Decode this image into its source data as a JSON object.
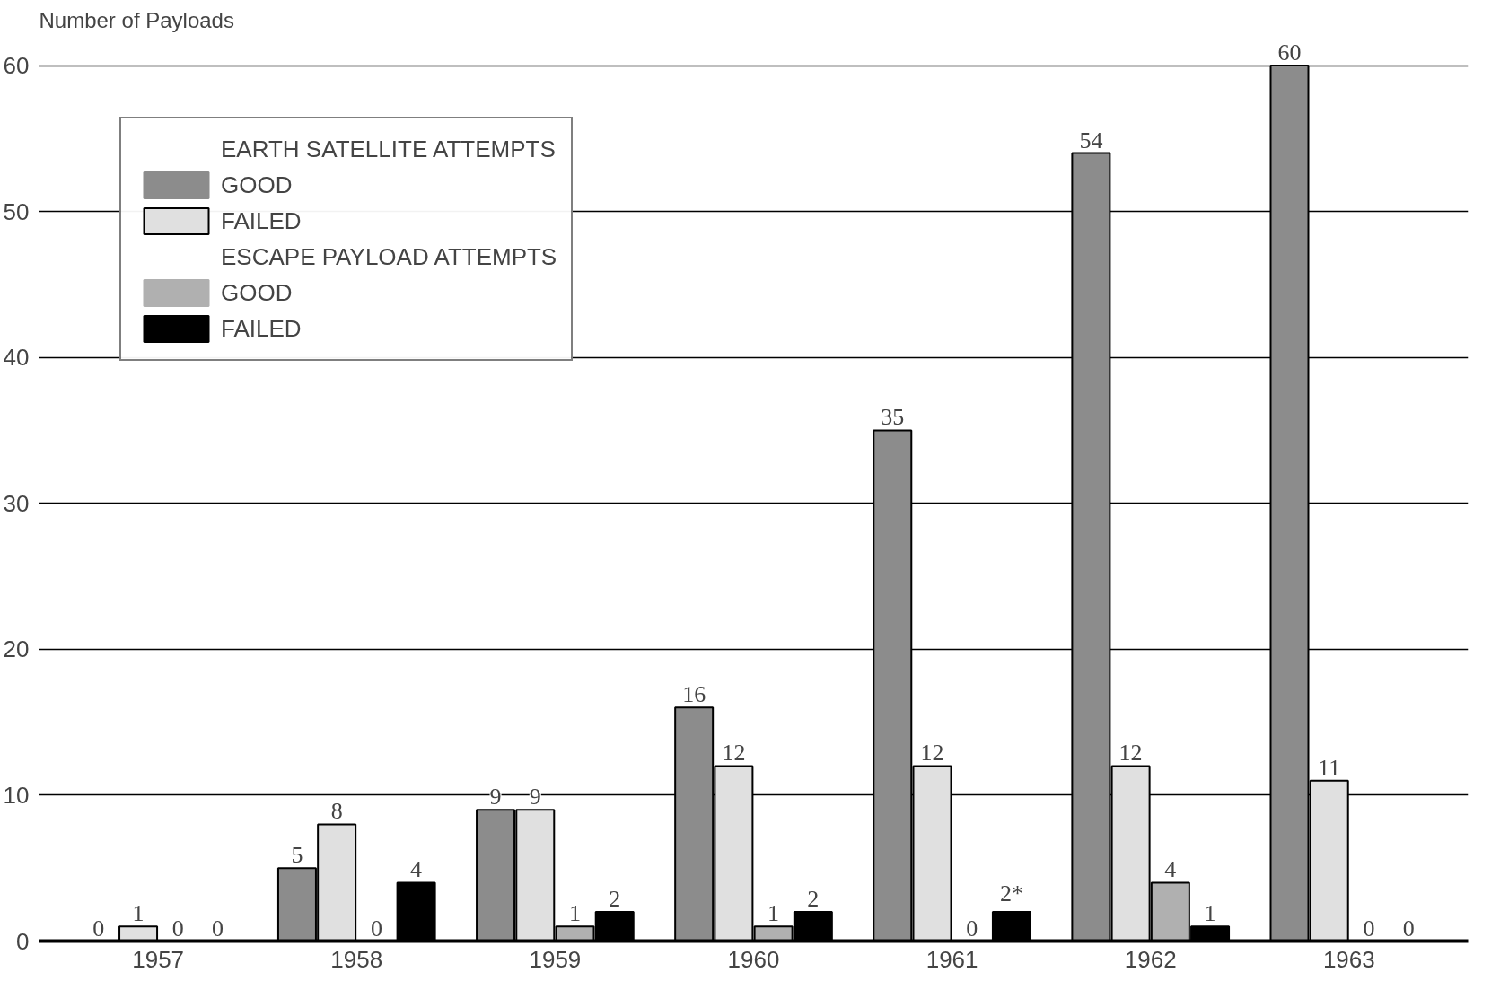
{
  "chart_data": {
    "type": "bar",
    "ylabel": "Number of Payloads",
    "categories": [
      "1957",
      "1958",
      "1959",
      "1960",
      "1961",
      "1962",
      "1963"
    ],
    "series": [
      {
        "name": "GOOD",
        "color": "#8c8c8c",
        "values": [
          0,
          5,
          9,
          16,
          35,
          54,
          60
        ],
        "value_labels": [
          "0",
          "5",
          "9",
          "16",
          "35",
          "54",
          "60"
        ]
      },
      {
        "name": "FAILED",
        "color": "#e0e0e0",
        "values": [
          1,
          8,
          9,
          12,
          12,
          12,
          11
        ],
        "value_labels": [
          "1",
          "8",
          "9",
          "12",
          "12",
          "12",
          "11"
        ]
      },
      {
        "name": "GOOD",
        "color": "#b0b0b0",
        "values": [
          0,
          0,
          1,
          1,
          0,
          4,
          0
        ],
        "value_labels": [
          "0",
          "0",
          "1",
          "1",
          "0",
          "4",
          "0"
        ]
      },
      {
        "name": "FAILED",
        "color": "#000000",
        "values": [
          0,
          4,
          2,
          2,
          2,
          1,
          0
        ],
        "value_labels": [
          "0",
          "4",
          "2",
          "2",
          "2*",
          "1",
          "0"
        ]
      }
    ],
    "annotations": [
      "EARTH SATELLITE ATTEMPTS",
      "ESCAPE PAYLOAD ATTEMPTS"
    ],
    "ylim": [
      0,
      62
    ],
    "yticks": [
      0,
      10,
      20,
      30,
      40,
      50,
      60
    ],
    "grid": "y",
    "legend": "top left"
  }
}
